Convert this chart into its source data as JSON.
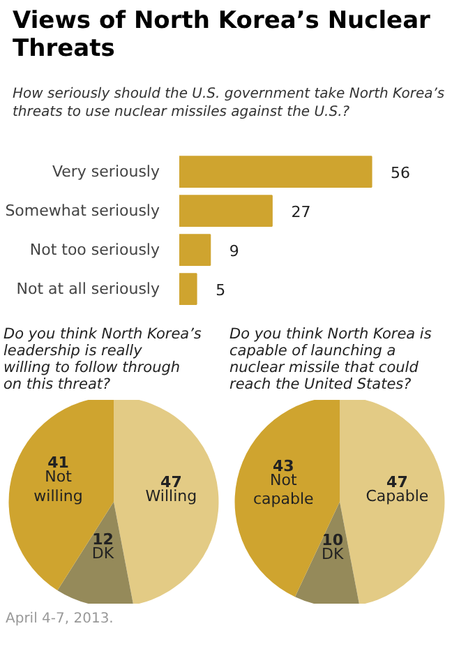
{
  "chart_data": [
    {
      "type": "bar",
      "orientation": "horizontal",
      "title": "Views of North Korea’s Nuclear Threats",
      "subtitle": "How seriously should the U.S. government take North Korea’s threats to use nuclear missiles against the U.S.?",
      "categories": [
        "Very seriously",
        "Somewhat seriously",
        "Not too seriously",
        "Not at all seriously"
      ],
      "values": [
        56,
        27,
        9,
        5
      ],
      "color": "#cfa42f",
      "data_labels": true,
      "annotations": [
        "April 4-7, 2013."
      ]
    },
    {
      "type": "pie",
      "title": "Do you think North Korea’s leadership is really willing to follow through on this threat?",
      "categories": [
        "Willing",
        "DK",
        "Not willing"
      ],
      "values": [
        47,
        12,
        41
      ],
      "colors": [
        "#e3cb85",
        "#958a5a",
        "#cfa42f"
      ],
      "data_labels": true
    },
    {
      "type": "pie",
      "title": "Do you think North Korea is capable of launching a nuclear missile that could reach the United States?",
      "categories": [
        "Capable",
        "DK",
        "Not capable"
      ],
      "values": [
        47,
        10,
        43
      ],
      "colors": [
        "#e3cb85",
        "#958a5a",
        "#cfa42f"
      ],
      "data_labels": true
    }
  ]
}
